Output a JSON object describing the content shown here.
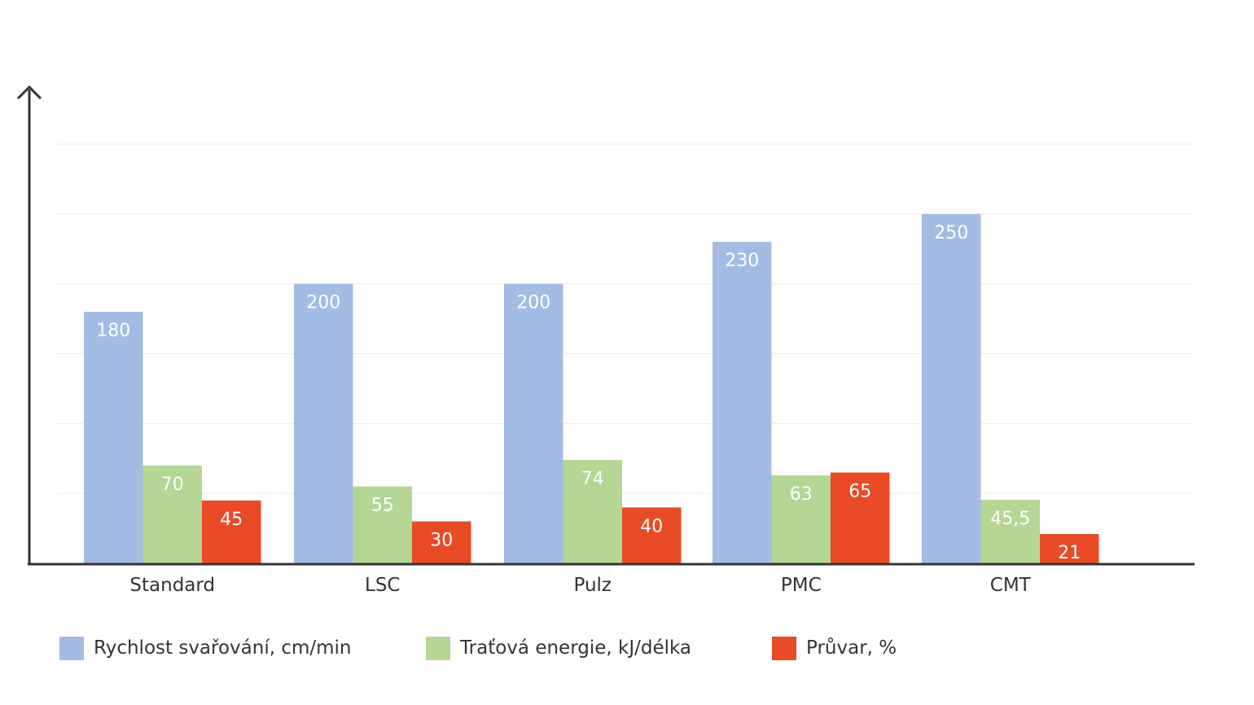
{
  "chart_data": {
    "type": "bar",
    "categories": [
      "Standard",
      "LSC",
      "Pulz",
      "PMC",
      "CMT"
    ],
    "series": [
      {
        "name": "Rychlost svařování, cm/min",
        "values": [
          180,
          200,
          200,
          230,
          250
        ],
        "labels": [
          "180",
          "200",
          "200",
          "230",
          "250"
        ],
        "color": "#a3bce4"
      },
      {
        "name": "Traťová energie, kJ/délka",
        "values": [
          70,
          55,
          74,
          63,
          45.5
        ],
        "labels": [
          "70",
          "55",
          "74",
          "63",
          "45,5"
        ],
        "color": "#b5d694"
      },
      {
        "name": "Průvar, %",
        "values": [
          45,
          30,
          40,
          65,
          21
        ],
        "labels": [
          "45",
          "30",
          "40",
          "65",
          "21"
        ],
        "color": "#e84b26"
      }
    ],
    "ylim": [
      0,
      300
    ],
    "grid": true,
    "legend": "bottom",
    "xlabel": "",
    "ylabel": ""
  }
}
